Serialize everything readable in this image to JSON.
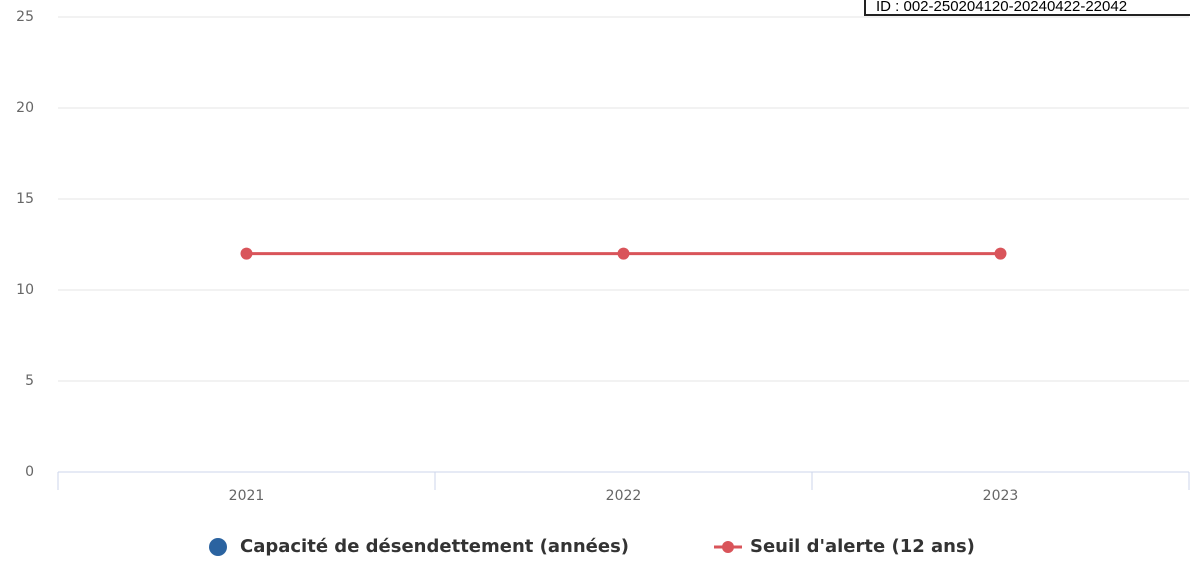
{
  "chart_data": {
    "type": "line",
    "categories": [
      "2021",
      "2022",
      "2023"
    ],
    "series": [
      {
        "name": "Capacité de désendettement (années)",
        "color": "#2b63a0",
        "values": [
          null,
          null,
          null
        ]
      },
      {
        "name": "Seuil d'alerte (12 ans)",
        "color": "#d9545a",
        "values": [
          12,
          12,
          12
        ]
      }
    ],
    "ylim": [
      0,
      25
    ],
    "yticks": [
      0,
      5,
      10,
      15,
      20,
      25
    ],
    "grid": true,
    "legend": "bottom",
    "stamp": "ID : 002-250204120-20240422-22042"
  }
}
